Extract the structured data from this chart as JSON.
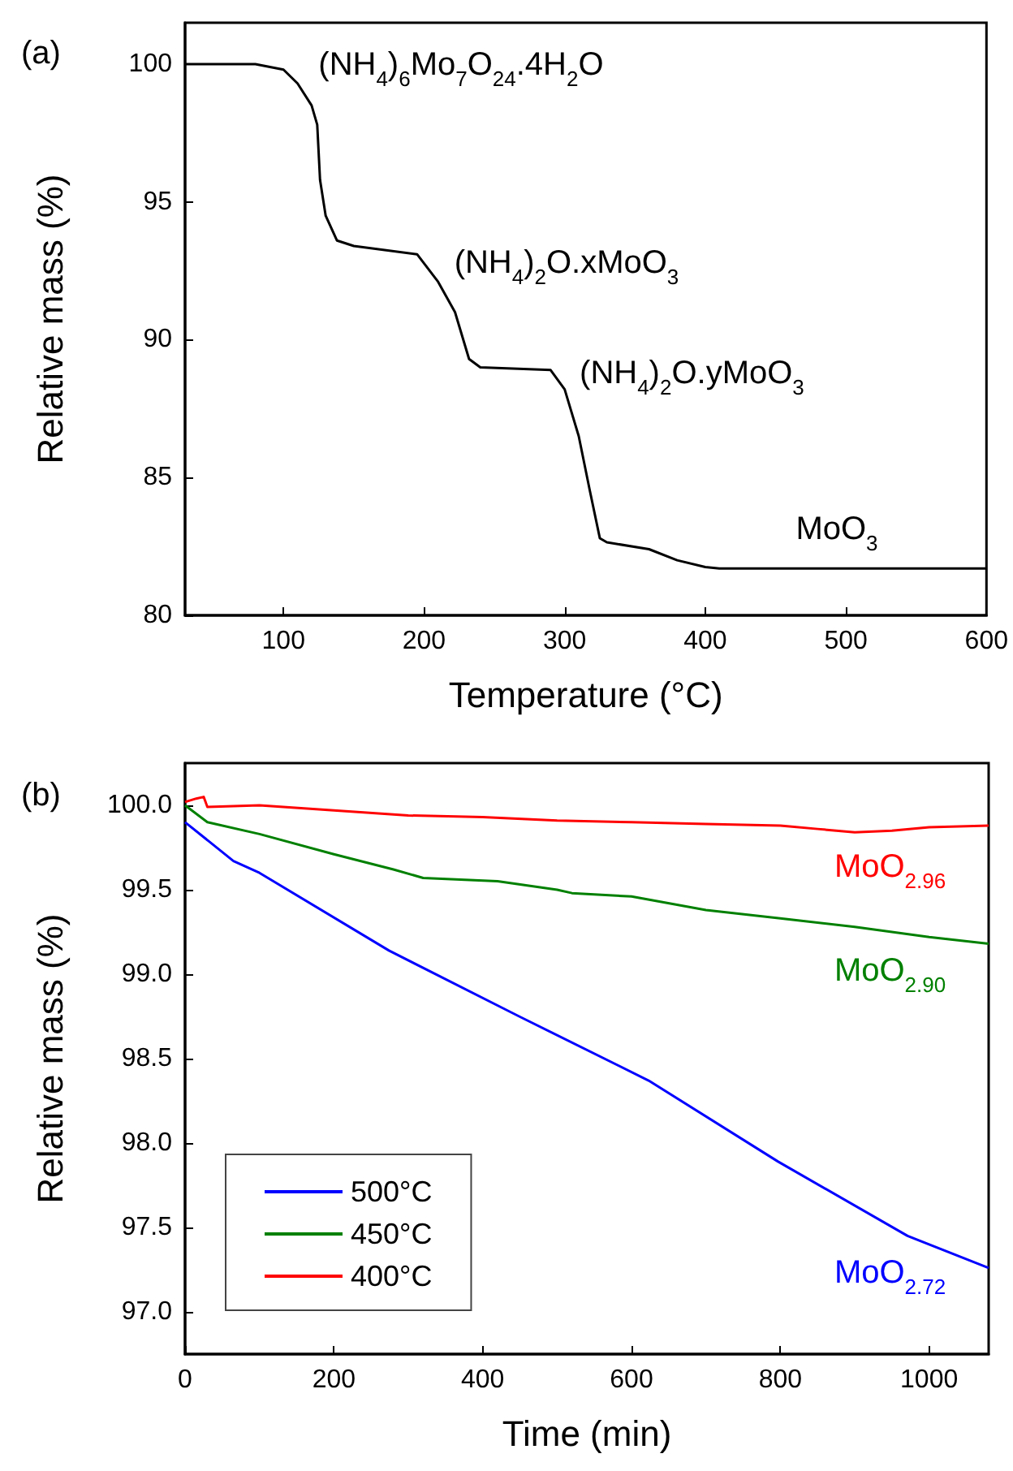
{
  "chart_data": [
    {
      "type": "line",
      "title": "(a)",
      "xlabel": "Temperature (°C)",
      "ylabel": "Relative mass (%)",
      "xlim": [
        30,
        600
      ],
      "xticks": [
        100,
        200,
        300,
        400,
        500,
        600
      ],
      "ylim": [
        80,
        101.5
      ],
      "yticks": [
        80,
        85,
        90,
        95,
        100
      ],
      "grid": false,
      "legend": false,
      "marker": "none",
      "line_style": "solid",
      "series": [
        {
          "color": "#000000",
          "x": [
            30,
            80,
            100,
            110,
            120,
            124,
            126,
            130,
            138,
            150,
            195,
            210,
            222,
            232,
            240,
            290,
            300,
            310,
            318,
            325,
            330,
            360,
            380,
            400,
            410,
            600
          ],
          "values": [
            100,
            100,
            99.8,
            99.3,
            98.5,
            97.8,
            95.8,
            94.5,
            93.6,
            93.4,
            93.1,
            92.1,
            91.0,
            89.3,
            89.0,
            88.9,
            88.2,
            86.5,
            84.5,
            82.8,
            82.65,
            82.4,
            82.0,
            81.75,
            81.7,
            81.7
          ]
        }
      ],
      "annotations": [
        "(NH$_{4}$)$_{6}$Mo$_{7}$O$_{24}$.4H$_{2}$O",
        "(NH$_{4}$)$_{2}$O.xMoO$_{3}$",
        "(NH$_{4}$)$_{2}$O.yMoO$_{3}$",
        "MoO$_{3}$"
      ]
    },
    {
      "type": "line",
      "title": "(b)",
      "xlabel": "Time (min)",
      "ylabel": "Relative mass (%)",
      "xlim": [
        0,
        1080
      ],
      "xticks": [
        0,
        200,
        400,
        600,
        800,
        1000
      ],
      "ylim": [
        96.75,
        100.25
      ],
      "yticks": [
        {
          "value": 97,
          "label": "97.0"
        },
        {
          "value": 97.5,
          "label": "97.5"
        },
        {
          "value": 98,
          "label": "98.0"
        },
        {
          "value": 98.5,
          "label": "98.5"
        },
        {
          "value": 99,
          "label": "99.0"
        },
        {
          "value": 99.5,
          "label": "99.5"
        },
        {
          "value": 100,
          "label": "100.0"
        }
      ],
      "grid": false,
      "legend": "bottom left",
      "marker": "none",
      "line_style": "solid",
      "series": [
        {
          "name": "500°C",
          "color": "#0000ff",
          "x": [
            0,
            65,
            100,
            274,
            449,
            623,
            797,
            971,
            1080
          ],
          "values": [
            99.9,
            99.67,
            99.6,
            99.14,
            98.75,
            98.37,
            97.89,
            97.45,
            97.26
          ]
        },
        {
          "name": "450°C",
          "color": "#008000",
          "x": [
            0,
            30,
            100,
            200,
            280,
            320,
            420,
            500,
            520,
            600,
            700,
            800,
            900,
            1000,
            1080
          ],
          "values": [
            100.0,
            99.9,
            99.83,
            99.71,
            99.62,
            99.57,
            99.55,
            99.5,
            99.48,
            99.46,
            99.38,
            99.33,
            99.28,
            99.22,
            99.18
          ]
        },
        {
          "name": "400°C",
          "color": "#ff0000",
          "x": [
            0,
            15,
            25,
            30,
            100,
            200,
            300,
            400,
            500,
            600,
            700,
            800,
            850,
            900,
            950,
            1000,
            1080
          ],
          "values": [
            100.02,
            100.04,
            100.05,
            99.99,
            100.0,
            99.97,
            99.94,
            99.93,
            99.91,
            99.9,
            99.89,
            99.88,
            99.86,
            99.84,
            99.85,
            99.87,
            99.88
          ]
        }
      ],
      "annotations": [
        "MoO$_{2.72}$",
        "MoO$_{2.90}$",
        "MoO$_{2.96}$"
      ]
    }
  ]
}
